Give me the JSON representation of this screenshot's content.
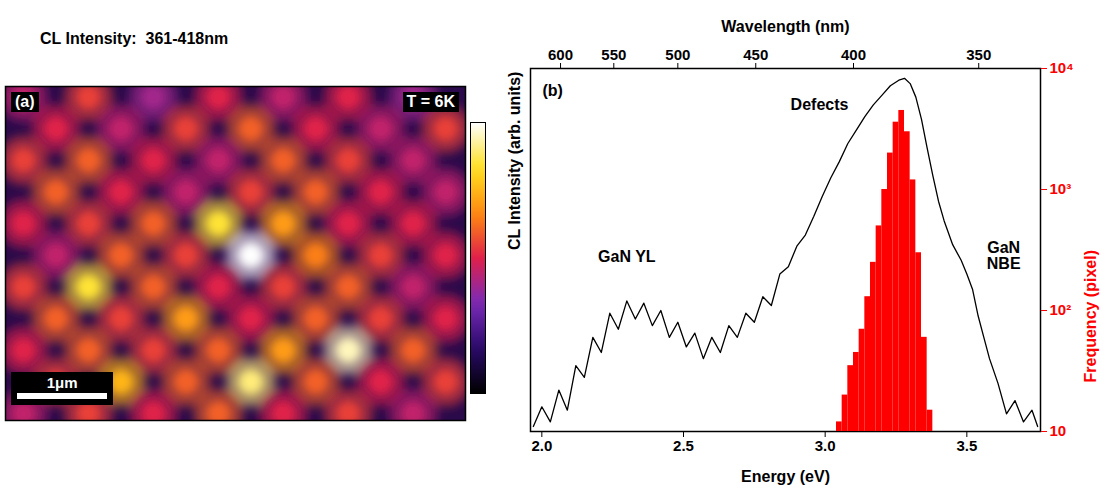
{
  "chart_data": [
    {
      "type": "heatmap",
      "title": "CL Intensity:  361-418nm",
      "panel_label": "(a)",
      "annotations": [
        "T = 6K"
      ],
      "xlim": [
        0,
        5.1
      ],
      "ylim": [
        0,
        3.8
      ],
      "tick_labels": false,
      "clim": [
        0,
        1
      ],
      "scale_bar": {
        "label": "1μm",
        "length": 1
      },
      "points": [
        [
          0.2,
          0.12,
          0.45
        ],
        [
          0.92,
          0.12,
          0.55
        ],
        [
          1.64,
          0.12,
          0.4
        ],
        [
          2.36,
          0.12,
          0.5
        ],
        [
          3.08,
          0.12,
          0.45
        ],
        [
          3.8,
          0.12,
          0.5
        ],
        [
          4.52,
          0.12,
          0.4
        ],
        [
          0.56,
          0.48,
          0.5
        ],
        [
          1.28,
          0.48,
          0.45
        ],
        [
          2.0,
          0.48,
          0.55
        ],
        [
          2.72,
          0.48,
          0.6
        ],
        [
          3.44,
          0.48,
          0.5
        ],
        [
          4.16,
          0.48,
          0.45
        ],
        [
          4.88,
          0.48,
          0.55
        ],
        [
          0.2,
          0.84,
          0.55
        ],
        [
          0.92,
          0.84,
          0.6
        ],
        [
          1.64,
          0.84,
          0.5
        ],
        [
          2.36,
          0.84,
          0.45
        ],
        [
          3.08,
          0.84,
          0.6
        ],
        [
          3.8,
          0.84,
          0.55
        ],
        [
          4.52,
          0.84,
          0.45
        ],
        [
          0.56,
          1.2,
          0.6
        ],
        [
          1.28,
          1.2,
          0.5
        ],
        [
          2.0,
          1.2,
          0.45
        ],
        [
          2.72,
          1.2,
          0.55
        ],
        [
          3.44,
          1.2,
          0.6
        ],
        [
          4.16,
          1.2,
          0.5
        ],
        [
          4.88,
          1.2,
          0.45
        ],
        [
          0.2,
          1.56,
          0.5
        ],
        [
          0.92,
          1.56,
          0.55
        ],
        [
          1.64,
          1.56,
          0.6
        ],
        [
          2.36,
          1.56,
          0.85
        ],
        [
          3.08,
          1.56,
          0.7
        ],
        [
          3.8,
          1.56,
          0.5
        ],
        [
          4.52,
          1.56,
          0.5
        ],
        [
          0.56,
          1.92,
          0.45
        ],
        [
          1.28,
          1.92,
          0.6
        ],
        [
          2.0,
          1.92,
          0.55
        ],
        [
          2.72,
          1.92,
          1
        ],
        [
          3.44,
          1.92,
          0.65
        ],
        [
          4.16,
          1.92,
          0.55
        ],
        [
          4.88,
          1.92,
          0.5
        ],
        [
          0.2,
          2.28,
          0.55
        ],
        [
          0.92,
          2.28,
          0.85
        ],
        [
          1.64,
          2.28,
          0.6
        ],
        [
          2.36,
          2.28,
          0.5
        ],
        [
          3.08,
          2.28,
          0.55
        ],
        [
          3.8,
          2.28,
          0.6
        ],
        [
          4.52,
          2.28,
          0.45
        ],
        [
          0.56,
          2.64,
          0.6
        ],
        [
          1.28,
          2.64,
          0.55
        ],
        [
          2.0,
          2.64,
          0.7
        ],
        [
          2.72,
          2.64,
          0.5
        ],
        [
          3.44,
          2.64,
          0.6
        ],
        [
          4.16,
          2.64,
          0.55
        ],
        [
          4.88,
          2.64,
          0.5
        ],
        [
          0.2,
          3.0,
          0.5
        ],
        [
          0.92,
          3.0,
          0.6
        ],
        [
          1.64,
          3.0,
          0.55
        ],
        [
          2.36,
          3.0,
          0.6
        ],
        [
          3.08,
          3.0,
          0.7
        ],
        [
          3.8,
          3.0,
          0.95
        ],
        [
          4.52,
          3.0,
          0.6
        ],
        [
          0.56,
          3.36,
          0.55
        ],
        [
          1.28,
          3.36,
          0.75
        ],
        [
          2.0,
          3.36,
          0.6
        ],
        [
          2.72,
          3.36,
          0.9
        ],
        [
          3.44,
          3.36,
          0.6
        ],
        [
          4.16,
          3.36,
          0.5
        ],
        [
          4.88,
          3.36,
          0.55
        ],
        [
          0.2,
          3.72,
          0.45
        ],
        [
          0.92,
          3.72,
          0.55
        ],
        [
          1.64,
          3.72,
          0.5
        ],
        [
          2.36,
          3.72,
          0.6
        ],
        [
          3.08,
          3.72,
          0.5
        ],
        [
          3.8,
          3.72,
          0.55
        ],
        [
          4.52,
          3.72,
          0.45
        ]
      ]
    },
    {
      "type": "line",
      "panel_label": "(b)",
      "xlabel": "Energy (eV)",
      "x2label": "Wavelength (nm)",
      "ylabel": "CL Intensity (arb. units)",
      "y2label": "Frequency (pixel)",
      "xlim": [
        1.96,
        3.76
      ],
      "xticks": [
        {
          "value": 2,
          "label": "2.0"
        },
        {
          "value": 2.5,
          "label": "2.5"
        },
        {
          "value": 3,
          "label": "3.0"
        },
        {
          "value": 3.5,
          "label": "3.5"
        }
      ],
      "x2ticks": [
        {
          "value": 2.066,
          "label": "600"
        },
        {
          "value": 2.254,
          "label": "550"
        },
        {
          "value": 2.48,
          "label": "500"
        },
        {
          "value": 2.755,
          "label": "450"
        },
        {
          "value": 3.1,
          "label": "400"
        },
        {
          "value": 3.542,
          "label": "350"
        }
      ],
      "ylim": [
        10,
        10000
      ],
      "yticks": [],
      "y2lim": [
        10,
        10000
      ],
      "y2ticks": [
        10,
        {
          "value": 100,
          "label": "10²"
        },
        {
          "value": 1000,
          "label": "10³"
        },
        {
          "value": 10000,
          "label": "10⁴"
        }
      ],
      "log": "y",
      "spectrum": {
        "type": "line",
        "color": "#000000",
        "x": [
          1.97,
          2.0,
          2.03,
          2.06,
          2.09,
          2.12,
          2.15,
          2.18,
          2.21,
          2.24,
          2.27,
          2.3,
          2.33,
          2.36,
          2.39,
          2.42,
          2.45,
          2.48,
          2.51,
          2.54,
          2.57,
          2.6,
          2.63,
          2.66,
          2.69,
          2.72,
          2.75,
          2.78,
          2.81,
          2.84,
          2.87,
          2.9,
          2.93,
          2.96,
          2.99,
          3.02,
          3.05,
          3.08,
          3.11,
          3.14,
          3.17,
          3.2,
          3.23,
          3.26,
          3.28,
          3.3,
          3.32,
          3.34,
          3.36,
          3.38,
          3.4,
          3.42,
          3.45,
          3.48,
          3.5,
          3.52,
          3.54,
          3.56,
          3.58,
          3.61,
          3.64,
          3.67,
          3.7,
          3.73,
          3.75
        ],
        "values": [
          11,
          16,
          12,
          22,
          15,
          35,
          28,
          60,
          45,
          95,
          70,
          120,
          85,
          115,
          75,
          100,
          60,
          80,
          50,
          65,
          40,
          60,
          45,
          75,
          60,
          95,
          80,
          130,
          110,
          200,
          230,
          340,
          420,
          600,
          880,
          1250,
          1700,
          2400,
          3100,
          4000,
          5000,
          6000,
          7200,
          8000,
          8300,
          7500,
          5800,
          3800,
          2200,
          1300,
          800,
          550,
          350,
          260,
          200,
          150,
          90,
          60,
          40,
          25,
          14,
          18,
          12,
          15,
          11
        ]
      },
      "histogram": {
        "type": "bar",
        "color": "#ff0000",
        "axis": "y2",
        "bins": [
          3.04,
          3.06,
          3.08,
          3.1,
          3.12,
          3.14,
          3.16,
          3.18,
          3.2,
          3.22,
          3.24,
          3.26,
          3.28,
          3.3,
          3.32,
          3.34,
          3.36,
          3.38
        ],
        "counts": [
          12,
          20,
          35,
          45,
          70,
          130,
          250,
          500,
          1000,
          2000,
          3600,
          4500,
          3000,
          1200,
          300,
          60,
          15
        ]
      },
      "annotations": [
        {
          "text": "Defects",
          "x": 2.98,
          "y": 5000
        },
        {
          "text": "GaN YL",
          "x": 2.3,
          "y": 280
        },
        {
          "text": "GaN NBE",
          "x": 3.63,
          "y": 285
        }
      ]
    }
  ]
}
